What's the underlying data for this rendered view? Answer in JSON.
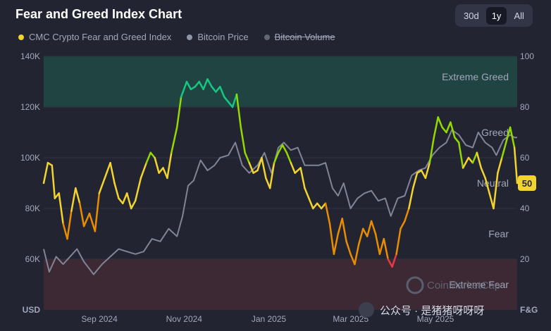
{
  "header": {
    "title": "Fear and Greed Index Chart",
    "ranges": [
      "30d",
      "1y",
      "All"
    ],
    "active_range": "1y"
  },
  "legend": [
    {
      "label": "CMC Crypto Fear and Greed Index",
      "color": "#f0d42a",
      "struck": false
    },
    {
      "label": "Bitcoin Price",
      "color": "#8e95a8",
      "struck": false
    },
    {
      "label": "Bitcoin Volume",
      "color": "#616675",
      "struck": true
    }
  ],
  "zones": [
    "Extreme Greed",
    "Greed",
    "Neutral",
    "Fear",
    "Extreme Fear"
  ],
  "current_value_badge": "50",
  "watermark": {
    "brand": "CoinMarketCap",
    "wechat": "公众号 · 是猪猪呀呀呀"
  },
  "chart_data": {
    "type": "line",
    "x_ticks": [
      "Sep 2024",
      "Nov 2024",
      "Jan 2025",
      "Mar 2025",
      "May 2025"
    ],
    "y_left": {
      "unit_label": "USD",
      "ticks": [
        "60K",
        "80K",
        "100K",
        "120K",
        "140K"
      ],
      "range": [
        40000,
        140000
      ]
    },
    "y_right": {
      "unit_label": "F&G",
      "ticks": [
        "20",
        "40",
        "60",
        "80",
        "100"
      ],
      "range": [
        0,
        100
      ]
    },
    "x_range": [
      "2024-08-01",
      "2025-07-08"
    ],
    "series": [
      {
        "name": "CMC Crypto Fear and Greed Index",
        "axis": "right",
        "points": [
          [
            "2024-08-01",
            50
          ],
          [
            "2024-08-04",
            58
          ],
          [
            "2024-08-07",
            57
          ],
          [
            "2024-08-09",
            44
          ],
          [
            "2024-08-12",
            46
          ],
          [
            "2024-08-15",
            34
          ],
          [
            "2024-08-18",
            28
          ],
          [
            "2024-08-21",
            39
          ],
          [
            "2024-08-24",
            48
          ],
          [
            "2024-08-27",
            42
          ],
          [
            "2024-08-30",
            33
          ],
          [
            "2024-09-03",
            38
          ],
          [
            "2024-09-07",
            31
          ],
          [
            "2024-09-10",
            46
          ],
          [
            "2024-09-14",
            52
          ],
          [
            "2024-09-18",
            58
          ],
          [
            "2024-09-21",
            50
          ],
          [
            "2024-09-24",
            44
          ],
          [
            "2024-09-27",
            42
          ],
          [
            "2024-09-30",
            46
          ],
          [
            "2024-10-03",
            40
          ],
          [
            "2024-10-06",
            43
          ],
          [
            "2024-10-10",
            52
          ],
          [
            "2024-10-14",
            58
          ],
          [
            "2024-10-17",
            62
          ],
          [
            "2024-10-20",
            60
          ],
          [
            "2024-10-23",
            54
          ],
          [
            "2024-10-26",
            56
          ],
          [
            "2024-10-29",
            52
          ],
          [
            "2024-11-01",
            62
          ],
          [
            "2024-11-05",
            72
          ],
          [
            "2024-11-08",
            84
          ],
          [
            "2024-11-12",
            90
          ],
          [
            "2024-11-15",
            87
          ],
          [
            "2024-11-18",
            88
          ],
          [
            "2024-11-21",
            90
          ],
          [
            "2024-11-24",
            87
          ],
          [
            "2024-11-27",
            91
          ],
          [
            "2024-11-30",
            88
          ],
          [
            "2024-12-03",
            86
          ],
          [
            "2024-12-06",
            88
          ],
          [
            "2024-12-09",
            84
          ],
          [
            "2024-12-12",
            82
          ],
          [
            "2024-12-15",
            80
          ],
          [
            "2024-12-18",
            85
          ],
          [
            "2024-12-21",
            72
          ],
          [
            "2024-12-24",
            62
          ],
          [
            "2024-12-27",
            58
          ],
          [
            "2024-12-30",
            54
          ],
          [
            "2025-01-02",
            55
          ],
          [
            "2025-01-05",
            60
          ],
          [
            "2025-01-08",
            52
          ],
          [
            "2025-01-11",
            48
          ],
          [
            "2025-01-14",
            58
          ],
          [
            "2025-01-17",
            62
          ],
          [
            "2025-01-20",
            65
          ],
          [
            "2025-01-23",
            62
          ],
          [
            "2025-01-26",
            58
          ],
          [
            "2025-01-29",
            54
          ],
          [
            "2025-02-02",
            56
          ],
          [
            "2025-02-05",
            48
          ],
          [
            "2025-02-08",
            44
          ],
          [
            "2025-02-11",
            40
          ],
          [
            "2025-02-14",
            42
          ],
          [
            "2025-02-17",
            40
          ],
          [
            "2025-02-20",
            42
          ],
          [
            "2025-02-23",
            34
          ],
          [
            "2025-02-26",
            22
          ],
          [
            "2025-03-01",
            30
          ],
          [
            "2025-03-04",
            36
          ],
          [
            "2025-03-07",
            27
          ],
          [
            "2025-03-10",
            22
          ],
          [
            "2025-03-13",
            18
          ],
          [
            "2025-03-16",
            26
          ],
          [
            "2025-03-19",
            32
          ],
          [
            "2025-03-22",
            29
          ],
          [
            "2025-03-25",
            35
          ],
          [
            "2025-03-28",
            30
          ],
          [
            "2025-03-31",
            22
          ],
          [
            "2025-04-03",
            28
          ],
          [
            "2025-04-06",
            20
          ],
          [
            "2025-04-09",
            17
          ],
          [
            "2025-04-12",
            22
          ],
          [
            "2025-04-15",
            32
          ],
          [
            "2025-04-18",
            35
          ],
          [
            "2025-04-21",
            40
          ],
          [
            "2025-04-24",
            48
          ],
          [
            "2025-04-27",
            54
          ],
          [
            "2025-04-30",
            55
          ],
          [
            "2025-05-03",
            52
          ],
          [
            "2025-05-06",
            58
          ],
          [
            "2025-05-09",
            68
          ],
          [
            "2025-05-12",
            76
          ],
          [
            "2025-05-15",
            72
          ],
          [
            "2025-05-18",
            70
          ],
          [
            "2025-05-21",
            74
          ],
          [
            "2025-05-24",
            68
          ],
          [
            "2025-05-27",
            66
          ],
          [
            "2025-05-30",
            56
          ],
          [
            "2025-06-03",
            60
          ],
          [
            "2025-06-06",
            58
          ],
          [
            "2025-06-09",
            62
          ],
          [
            "2025-06-12",
            56
          ],
          [
            "2025-06-15",
            52
          ],
          [
            "2025-06-18",
            46
          ],
          [
            "2025-06-21",
            40
          ],
          [
            "2025-06-24",
            54
          ],
          [
            "2025-06-27",
            60
          ],
          [
            "2025-06-30",
            66
          ],
          [
            "2025-07-03",
            72
          ],
          [
            "2025-07-06",
            64
          ],
          [
            "2025-07-08",
            50
          ]
        ]
      },
      {
        "name": "Bitcoin Price",
        "axis": "left",
        "points": [
          [
            "2024-08-01",
            64000
          ],
          [
            "2024-08-05",
            55000
          ],
          [
            "2024-08-10",
            61000
          ],
          [
            "2024-08-15",
            58000
          ],
          [
            "2024-08-20",
            61000
          ],
          [
            "2024-08-25",
            64000
          ],
          [
            "2024-08-30",
            59000
          ],
          [
            "2024-09-06",
            54000
          ],
          [
            "2024-09-12",
            58000
          ],
          [
            "2024-09-18",
            61000
          ],
          [
            "2024-09-24",
            64000
          ],
          [
            "2024-09-30",
            63000
          ],
          [
            "2024-10-06",
            62000
          ],
          [
            "2024-10-12",
            63000
          ],
          [
            "2024-10-18",
            68000
          ],
          [
            "2024-10-24",
            67000
          ],
          [
            "2024-10-30",
            72000
          ],
          [
            "2024-11-05",
            69000
          ],
          [
            "2024-11-09",
            77000
          ],
          [
            "2024-11-13",
            89000
          ],
          [
            "2024-11-17",
            91000
          ],
          [
            "2024-11-22",
            99000
          ],
          [
            "2024-11-27",
            95000
          ],
          [
            "2024-12-02",
            97000
          ],
          [
            "2024-12-06",
            100000
          ],
          [
            "2024-12-12",
            101000
          ],
          [
            "2024-12-17",
            106000
          ],
          [
            "2024-12-22",
            97000
          ],
          [
            "2024-12-27",
            94000
          ],
          [
            "2025-01-02",
            97000
          ],
          [
            "2025-01-07",
            102000
          ],
          [
            "2025-01-12",
            94000
          ],
          [
            "2025-01-17",
            104000
          ],
          [
            "2025-01-21",
            106000
          ],
          [
            "2025-01-26",
            103000
          ],
          [
            "2025-01-31",
            104000
          ],
          [
            "2025-02-05",
            97000
          ],
          [
            "2025-02-10",
            97000
          ],
          [
            "2025-02-15",
            97000
          ],
          [
            "2025-02-20",
            98000
          ],
          [
            "2025-02-25",
            88000
          ],
          [
            "2025-03-01",
            85000
          ],
          [
            "2025-03-05",
            90000
          ],
          [
            "2025-03-10",
            80000
          ],
          [
            "2025-03-15",
            84000
          ],
          [
            "2025-03-20",
            86000
          ],
          [
            "2025-03-25",
            87000
          ],
          [
            "2025-03-30",
            83000
          ],
          [
            "2025-04-04",
            84000
          ],
          [
            "2025-04-08",
            77000
          ],
          [
            "2025-04-13",
            84000
          ],
          [
            "2025-04-18",
            85000
          ],
          [
            "2025-04-23",
            93000
          ],
          [
            "2025-04-28",
            95000
          ],
          [
            "2025-05-03",
            96000
          ],
          [
            "2025-05-08",
            101000
          ],
          [
            "2025-05-13",
            104000
          ],
          [
            "2025-05-18",
            106000
          ],
          [
            "2025-05-22",
            111000
          ],
          [
            "2025-05-27",
            109000
          ],
          [
            "2025-06-01",
            105000
          ],
          [
            "2025-06-06",
            104000
          ],
          [
            "2025-06-10",
            110000
          ],
          [
            "2025-06-15",
            106000
          ],
          [
            "2025-06-20",
            104000
          ],
          [
            "2025-06-23",
            101000
          ],
          [
            "2025-06-28",
            107000
          ],
          [
            "2025-07-03",
            109000
          ],
          [
            "2025-07-06",
            108000
          ],
          [
            "2025-07-08",
            108000
          ]
        ]
      }
    ]
  }
}
